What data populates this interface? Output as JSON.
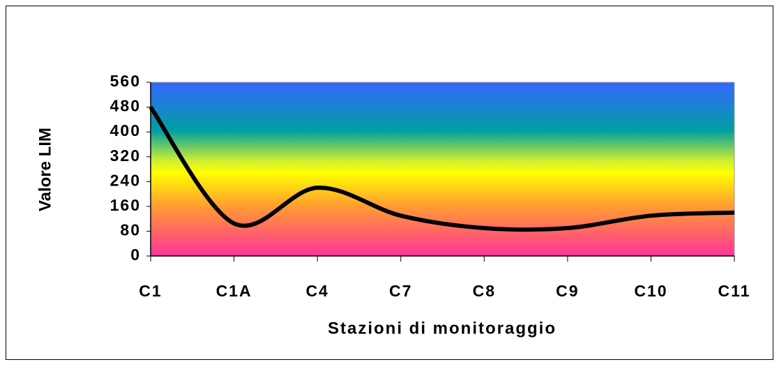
{
  "chart_data": {
    "type": "line",
    "x_label": "Stazioni di monitoraggio",
    "y_label": "Valore LIM",
    "categories": [
      "C1",
      "C1A",
      "C4",
      "C7",
      "C8",
      "C9",
      "C10",
      "C11"
    ],
    "values": [
      480,
      105,
      220,
      130,
      90,
      90,
      130,
      140
    ],
    "color": "#000000",
    "smooth": true,
    "ylim": [
      0,
      560
    ],
    "yticks": [
      0,
      80,
      160,
      240,
      320,
      400,
      480,
      560
    ]
  }
}
